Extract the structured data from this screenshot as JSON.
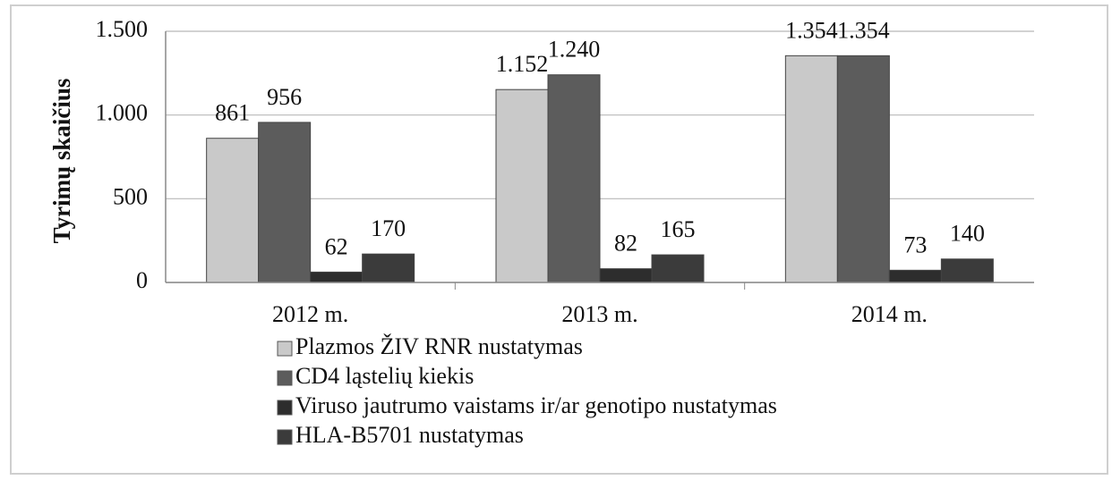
{
  "chart_data": {
    "type": "bar",
    "ylabel": "Tyrimų skaičius",
    "categories": [
      "2012 m.",
      "2013 m.",
      "2014 m."
    ],
    "series": [
      {
        "name": "Plazmos ŽIV RNR nustatymas",
        "color": "#c9c9c9",
        "values": [
          861,
          1152,
          1354
        ],
        "value_labels": [
          "861",
          "1.152",
          "1.354"
        ]
      },
      {
        "name": "CD4 ląstelių kiekis",
        "color": "#5c5c5c",
        "values": [
          956,
          1240,
          1354
        ],
        "value_labels": [
          "956",
          "1.240",
          "1.354"
        ]
      },
      {
        "name": "Viruso jautrumo vaistams ir/ar genotipo nustatymas",
        "color": "#2d2d2d",
        "values": [
          62,
          82,
          73
        ]
      },
      {
        "name": "HLA-B5701 nustatymas",
        "color": "#3b3b3b",
        "values": [
          170,
          165,
          140
        ]
      }
    ],
    "ylim": [
      0,
      1500
    ],
    "yticks": [
      0,
      500,
      {
        "value": 1000,
        "label": "1.000"
      },
      {
        "value": 1500,
        "label": "1.500"
      }
    ],
    "grid": true
  }
}
